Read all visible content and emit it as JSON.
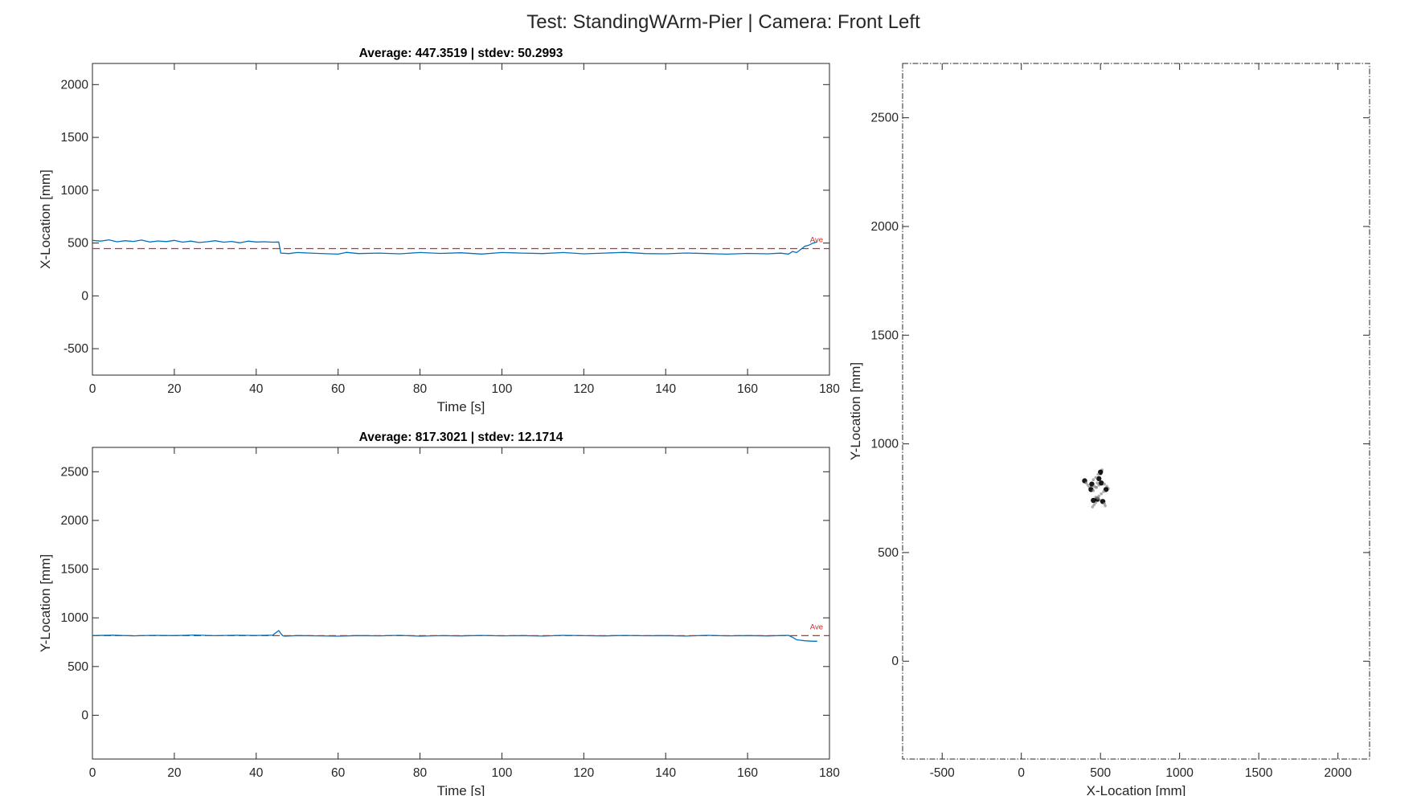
{
  "figure": {
    "title": "Test: StandingWArm-Pier  |  Camera: Front Left"
  },
  "colors": {
    "series": "#0072BD",
    "average": "#D62728",
    "axis": "#262626",
    "marker": "#000000"
  },
  "chart_data": [
    {
      "type": "line",
      "id": "x-time",
      "title": "Average: 447.3519  |  stdev: 50.2993",
      "xlabel": "Time [s]",
      "ylabel": "X-Location [mm]",
      "xlim": [
        0,
        180
      ],
      "ylim": [
        -750,
        2200
      ],
      "xticks": [
        0,
        20,
        40,
        60,
        80,
        100,
        120,
        140,
        160,
        180
      ],
      "yticks": [
        -500,
        0,
        500,
        1000,
        1500,
        2000
      ],
      "average": {
        "value": 447.3519,
        "label": "Ave"
      },
      "series": [
        {
          "x": [
            0,
            2,
            4,
            6,
            8,
            10,
            12,
            14,
            16,
            18,
            20,
            22,
            24,
            26,
            28,
            30,
            32,
            34,
            36,
            38,
            40,
            42,
            44,
            45.5,
            46,
            48,
            50,
            55,
            60,
            62,
            65,
            70,
            75,
            80,
            85,
            90,
            95,
            100,
            105,
            110,
            115,
            120,
            125,
            130,
            135,
            140,
            145,
            150,
            155,
            160,
            165,
            168,
            170,
            171,
            172,
            173,
            174,
            175,
            176,
            177
          ],
          "y": [
            525,
            518,
            530,
            512,
            522,
            515,
            528,
            510,
            520,
            514,
            525,
            508,
            518,
            505,
            512,
            522,
            508,
            515,
            502,
            518,
            510,
            512,
            508,
            510,
            405,
            400,
            410,
            402,
            395,
            412,
            400,
            405,
            398,
            410,
            402,
            408,
            396,
            410,
            405,
            400,
            410,
            398,
            405,
            412,
            400,
            398,
            406,
            400,
            395,
            402,
            398,
            404,
            396,
            420,
            410,
            440,
            470,
            480,
            500,
            510
          ]
        }
      ]
    },
    {
      "type": "line",
      "id": "y-time",
      "title": "Average: 817.3021  |  stdev: 12.1714",
      "xlabel": "Time [s]",
      "ylabel": "Y-Location [mm]",
      "xlim": [
        0,
        180
      ],
      "ylim": [
        -450,
        2750
      ],
      "xticks": [
        0,
        20,
        40,
        60,
        80,
        100,
        120,
        140,
        160,
        180
      ],
      "yticks": [
        0,
        500,
        1000,
        1500,
        2000,
        2500
      ],
      "average": {
        "value": 817.3021,
        "label": "Ave"
      },
      "series": [
        {
          "x": [
            0,
            5,
            10,
            15,
            20,
            25,
            30,
            35,
            40,
            44,
            45.5,
            46,
            46.5,
            47,
            50,
            55,
            60,
            65,
            70,
            75,
            80,
            85,
            90,
            95,
            100,
            105,
            110,
            115,
            120,
            125,
            130,
            135,
            140,
            145,
            150,
            155,
            160,
            165,
            170,
            171,
            172,
            173,
            174,
            176,
            177
          ],
          "y": [
            818,
            822,
            815,
            820,
            818,
            823,
            817,
            821,
            819,
            822,
            870,
            840,
            815,
            812,
            818,
            815,
            812,
            818,
            815,
            820,
            812,
            817,
            814,
            819,
            815,
            818,
            813,
            820,
            817,
            814,
            819,
            816,
            818,
            813,
            820,
            815,
            818,
            814,
            820,
            800,
            775,
            770,
            765,
            760,
            760
          ]
        }
      ]
    },
    {
      "type": "scatter",
      "id": "xy-location",
      "xlabel": "X-Location [mm]",
      "ylabel": "Y-Location [mm]",
      "xlim": [
        -750,
        2200
      ],
      "ylim": [
        -450,
        2750
      ],
      "xticks": [
        -500,
        0,
        500,
        1000,
        1500,
        2000
      ],
      "yticks": [
        0,
        500,
        1000,
        1500,
        2000,
        2500
      ],
      "series": [
        {
          "x": [
            400,
            410,
            420,
            430,
            440,
            455,
            470,
            480,
            490,
            500,
            505,
            510,
            500,
            485,
            470,
            455,
            445,
            460,
            475,
            490,
            505,
            525,
            540,
            550,
            535,
            520,
            505,
            490,
            480,
            470,
            460,
            450,
            455,
            470,
            485,
            500,
            515,
            525,
            530
          ],
          "y": [
            830,
            820,
            810,
            800,
            790,
            785,
            800,
            820,
            840,
            860,
            875,
            880,
            870,
            860,
            845,
            835,
            815,
            805,
            800,
            810,
            820,
            815,
            805,
            795,
            790,
            780,
            770,
            760,
            745,
            730,
            720,
            710,
            740,
            755,
            750,
            740,
            735,
            725,
            715
          ]
        }
      ]
    }
  ]
}
